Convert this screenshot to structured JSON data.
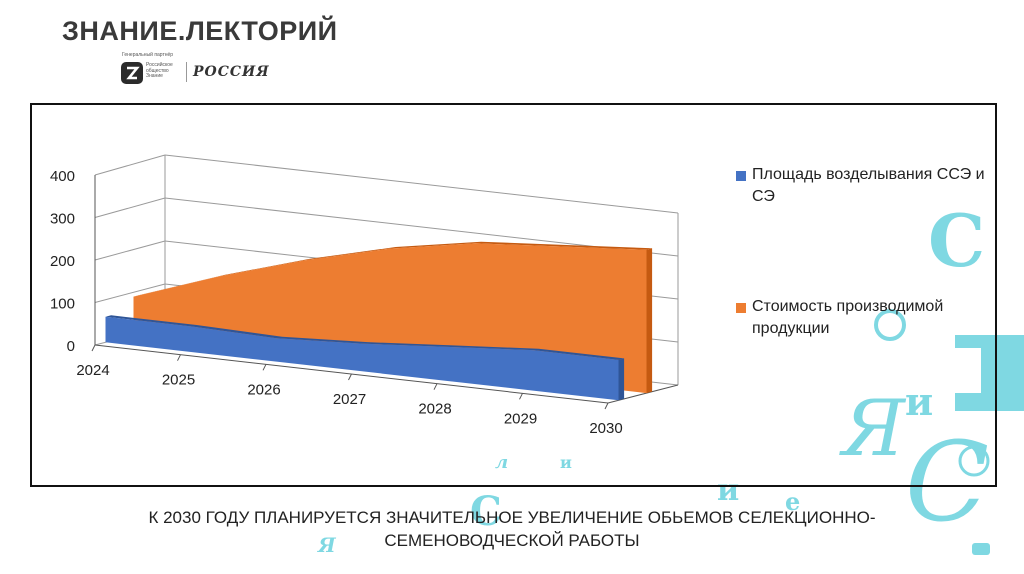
{
  "header": {
    "title": "ЗНАНИЕ.ЛЕКТОРИЙ",
    "partner_caption": "Генеральный партнёр",
    "partner_org": "Российское общество Знание",
    "russia_logo_text": "РОССИЯ"
  },
  "chart_data": {
    "type": "area",
    "categories": [
      "2024",
      "2025",
      "2026",
      "2027",
      "2028",
      "2029",
      "2030"
    ],
    "series": [
      {
        "name": "Площадь возделывания ССЭ и СЭ",
        "values": [
          60,
          60,
          55,
          65,
          80,
          95,
          95
        ],
        "color": "#4472c4"
      },
      {
        "name": "Стоимость производимой продукции",
        "values": [
          90,
          160,
          220,
          270,
          305,
          320,
          335
        ],
        "color": "#ed7d31"
      }
    ],
    "yticks": [
      "0",
      "100",
      "200",
      "300",
      "400"
    ],
    "ylim": [
      0,
      400
    ],
    "legend_position": "right",
    "grid": true,
    "three_d": true
  },
  "caption": "К 2030 ГОДУ ПЛАНИРУЕТСЯ ЗНАЧИТЕЛЬНОЕ УВЕЛИЧЕНИЕ ОБЬЕМОВ СЕЛЕКЦИОННО-СЕМЕНОВОДЧЕСКОЙ РАБОТЫ",
  "decor": {
    "color": "#7fd8e2",
    "glyphs": [
      "С",
      "Я",
      "и",
      "и",
      "С",
      "л",
      "и",
      "С",
      "е",
      "Я"
    ]
  }
}
